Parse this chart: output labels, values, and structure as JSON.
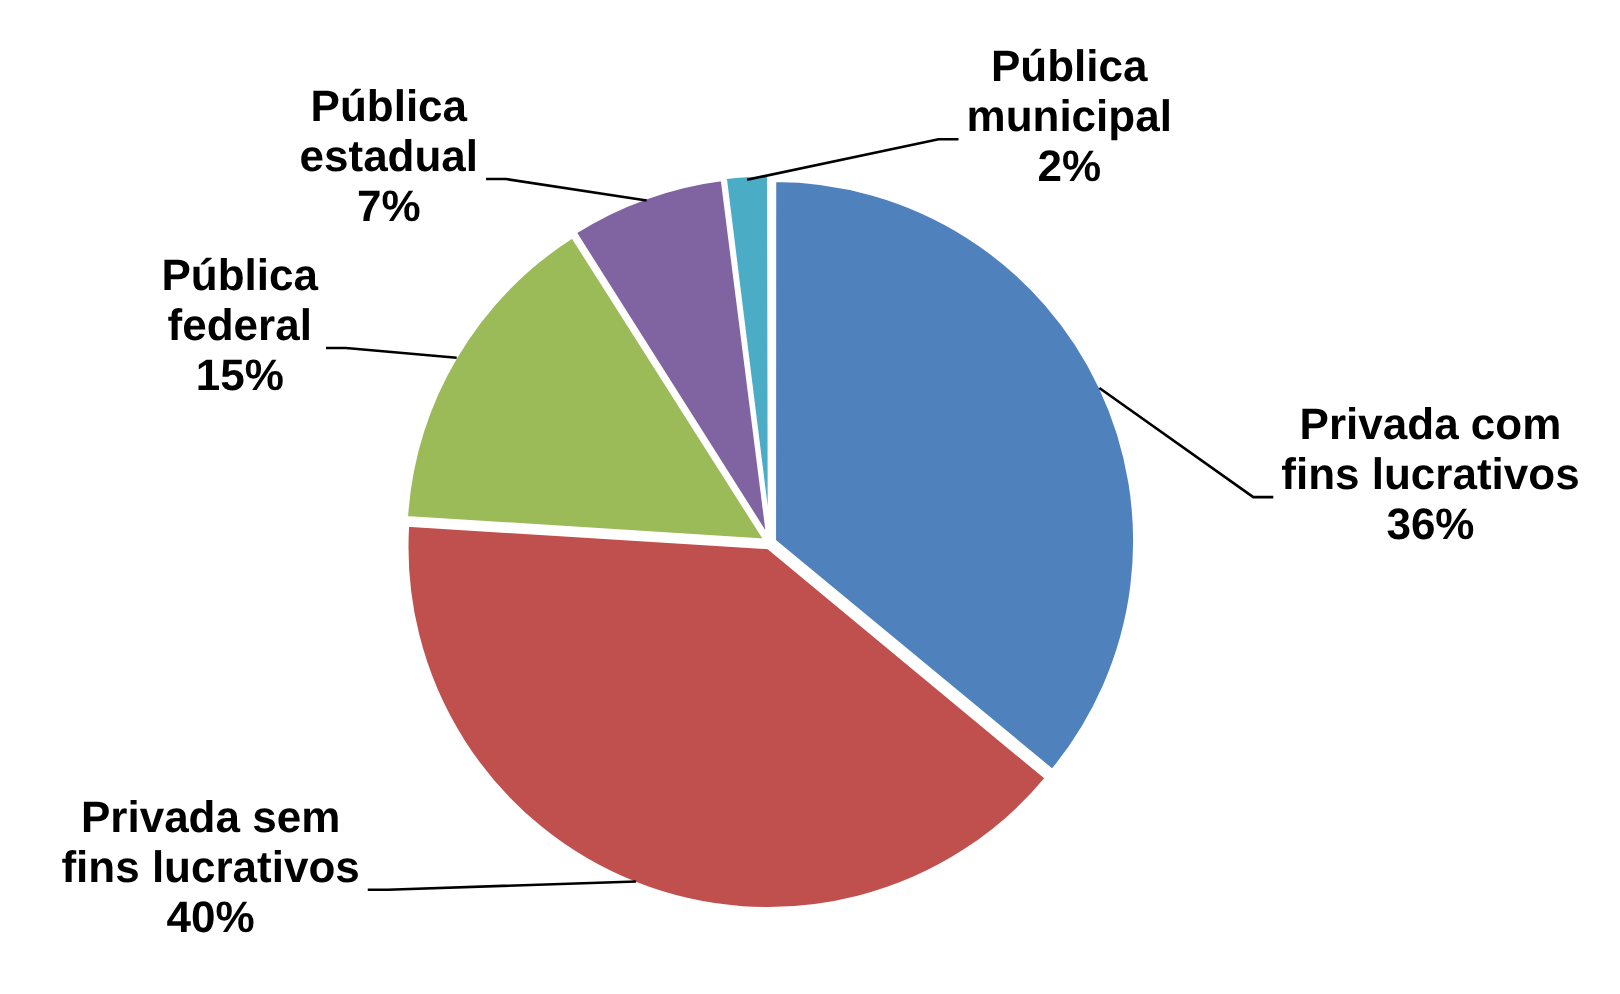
{
  "chart_data": {
    "type": "pie",
    "categories": [
      "Privada com fins lucrativos",
      "Privada sem fins lucrativos",
      "Pública federal",
      "Pública estadual",
      "Pública municipal"
    ],
    "values": [
      36,
      40,
      15,
      7,
      2
    ],
    "colors": [
      "#4f81bd",
      "#c0504d",
      "#9bbb59",
      "#8064a2",
      "#4bacc6"
    ],
    "value_labels": [
      "36%",
      "40%",
      "15%",
      "7%",
      "2%"
    ],
    "legend": false
  }
}
